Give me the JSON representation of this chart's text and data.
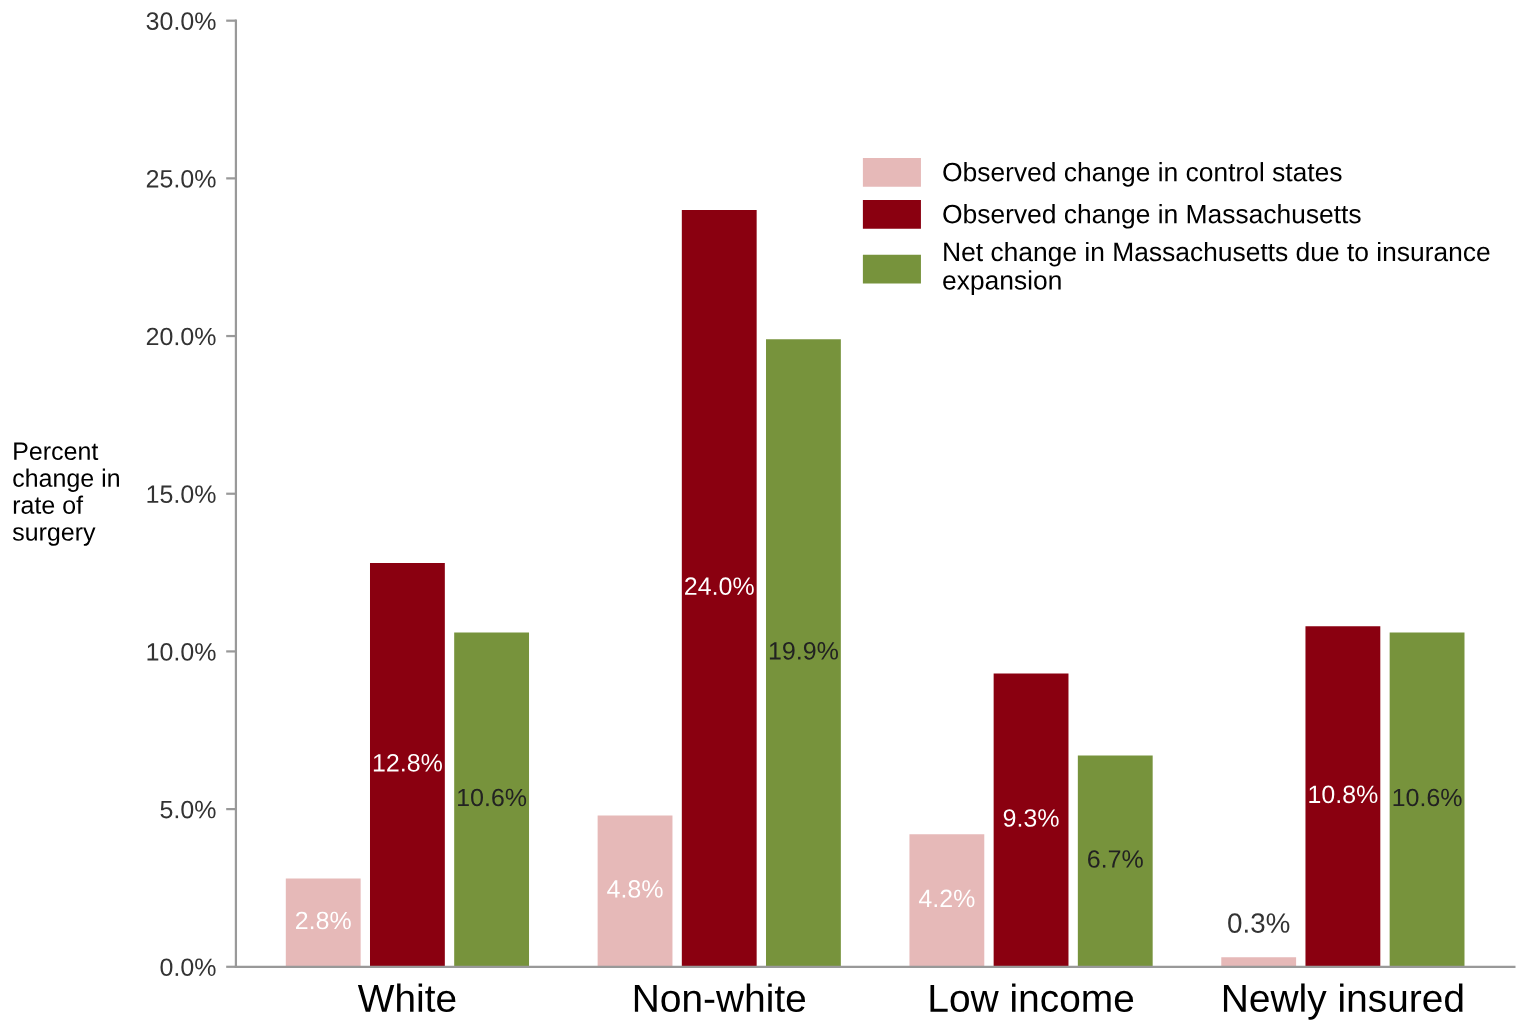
{
  "chart_data": {
    "type": "bar",
    "ylabel": "Percent\nchange in\nrate of\nsurgery",
    "categories": [
      "White",
      "Non-white",
      "Low income",
      "Newly insured"
    ],
    "series": [
      {
        "name": "Observed change in control states",
        "color": "#e6b9b8",
        "values": [
          2.8,
          4.8,
          4.2,
          0.3
        ],
        "value_labels": [
          "2.8%",
          "4.8%",
          "4.2%",
          "0.3%"
        ]
      },
      {
        "name": "Observed change in Massachusetts",
        "color": "#8a0010",
        "values": [
          12.8,
          24.0,
          9.3,
          10.8
        ],
        "value_labels": [
          "12.8%",
          "24.0%",
          "9.3%",
          "10.8%"
        ]
      },
      {
        "name": "Net change in Massachusetts due to insurance\nexpansion",
        "color": "#77933c",
        "values": [
          10.6,
          19.9,
          6.7,
          10.6
        ],
        "value_labels": [
          "10.6%",
          "19.9%",
          "6.7%",
          "10.6%"
        ]
      }
    ],
    "ylim": [
      0,
      30
    ],
    "yticks": [
      {
        "value": 0,
        "label": "0.0%"
      },
      {
        "value": 5,
        "label": "5.0%"
      },
      {
        "value": 10,
        "label": "10.0%"
      },
      {
        "value": 15,
        "label": "15.0%"
      },
      {
        "value": 20,
        "label": "20.0%"
      },
      {
        "value": 25,
        "label": "25.0%"
      },
      {
        "value": 30,
        "label": "30.0%"
      }
    ],
    "grid": false,
    "legend": "top right"
  }
}
